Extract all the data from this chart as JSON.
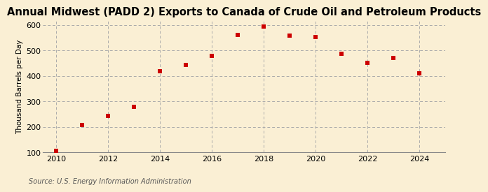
{
  "title": "Annual Midwest (PADD 2) Exports to Canada of Crude Oil and Petroleum Products",
  "ylabel": "Thousand Barrels per Day",
  "source": "Source: U.S. Energy Information Administration",
  "background_color": "#faefd4",
  "years": [
    2010,
    2011,
    2012,
    2013,
    2014,
    2015,
    2016,
    2017,
    2018,
    2019,
    2020,
    2021,
    2022,
    2023,
    2024
  ],
  "values": [
    105,
    207,
    242,
    278,
    418,
    442,
    478,
    562,
    593,
    557,
    553,
    488,
    452,
    470,
    410
  ],
  "marker_color": "#cc0000",
  "marker": "s",
  "marker_size": 22,
  "xlim": [
    2009.5,
    2025.0
  ],
  "ylim": [
    100,
    620
  ],
  "yticks": [
    100,
    200,
    300,
    400,
    500,
    600
  ],
  "xticks": [
    2010,
    2012,
    2014,
    2016,
    2018,
    2020,
    2022,
    2024
  ],
  "title_fontsize": 10.5,
  "ylabel_fontsize": 7.5,
  "tick_fontsize": 8,
  "source_fontsize": 7
}
